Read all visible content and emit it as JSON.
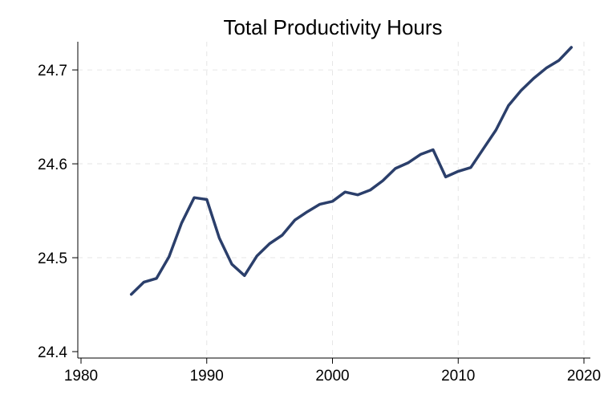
{
  "chart_data": {
    "type": "line",
    "title": "Total Productivity Hours",
    "xlabel": "",
    "ylabel": "",
    "xlim": [
      1980,
      2020
    ],
    "ylim": [
      24.4,
      24.7
    ],
    "x_ticks": [
      "1980",
      "1990",
      "2000",
      "2010",
      "2020"
    ],
    "y_ticks": [
      "24.4",
      "24.5",
      "24.6",
      "24.7"
    ],
    "grid": true,
    "line_color": "#2b3f6b",
    "series": [
      {
        "x": [
          1984,
          1985,
          1986,
          1987,
          1988,
          1989,
          1990,
          1991,
          1992,
          1993,
          1994,
          1995,
          1996,
          1997,
          1998,
          1999,
          2000,
          2001,
          2002,
          2003,
          2004,
          2005,
          2006,
          2007,
          2008,
          2009,
          2010,
          2011,
          2012,
          2013,
          2014,
          2015,
          2016,
          2017,
          2018,
          2019
        ],
        "values": [
          24.461,
          24.474,
          24.478,
          24.501,
          24.537,
          24.564,
          24.562,
          24.521,
          24.493,
          24.481,
          24.502,
          24.515,
          24.524,
          24.54,
          24.549,
          24.557,
          24.56,
          24.57,
          24.567,
          24.572,
          24.582,
          24.595,
          24.601,
          24.61,
          24.615,
          24.586,
          24.592,
          24.596,
          24.616,
          24.636,
          24.662,
          24.678,
          24.691,
          24.702,
          24.71,
          24.724
        ]
      }
    ]
  }
}
